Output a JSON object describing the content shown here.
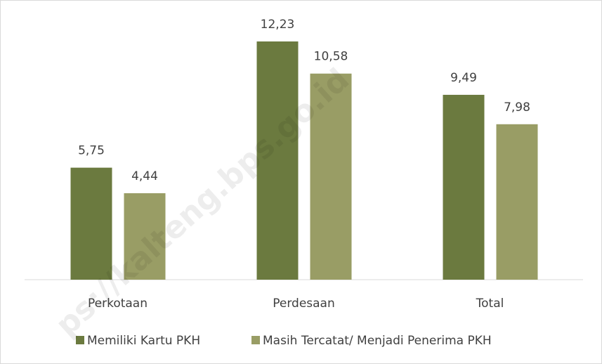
{
  "chart_data": {
    "type": "bar",
    "categories": [
      "Perkotaan",
      "Perdesaan",
      "Total"
    ],
    "series": [
      {
        "name": "Memiliki Kartu PKH",
        "color": "#6b7a3f",
        "values": [
          5.75,
          12.23,
          9.49
        ],
        "value_labels": [
          "5,75",
          "12,23",
          "9,49"
        ]
      },
      {
        "name": "Masih Tercatat/ Menjadi Penerima PKH",
        "color": "#999d65",
        "values": [
          4.44,
          10.58,
          7.98
        ],
        "value_labels": [
          "4,44",
          "10,58",
          "7,98"
        ]
      }
    ],
    "legend": "bottom",
    "watermark": "ps://kalteng.bps.go.id"
  }
}
